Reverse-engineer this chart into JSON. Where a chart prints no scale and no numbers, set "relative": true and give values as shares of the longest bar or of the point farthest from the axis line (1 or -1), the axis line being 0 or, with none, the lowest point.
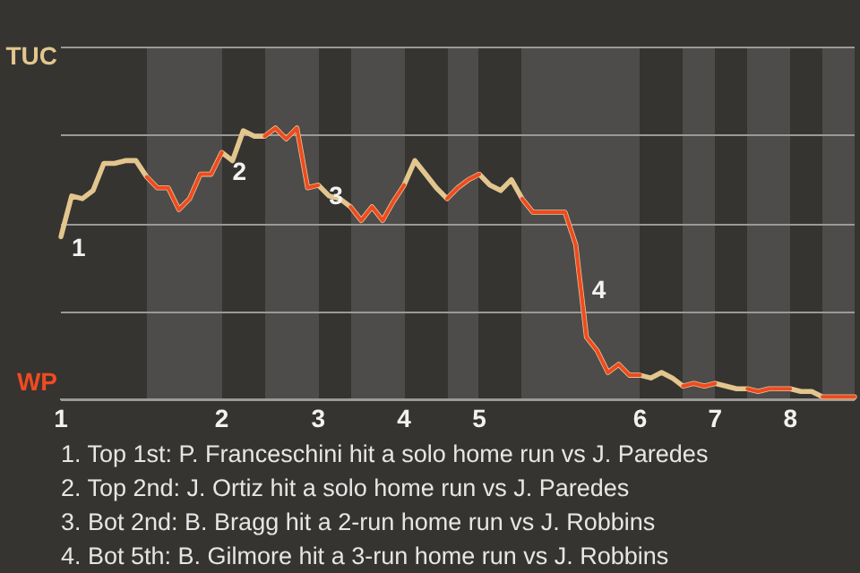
{
  "chart_data": {
    "type": "line",
    "relative": true,
    "categories": [
      "1",
      null,
      null,
      null,
      null,
      null,
      null,
      null,
      null,
      null,
      null,
      null,
      null,
      null,
      null,
      "2",
      null,
      null,
      null,
      null,
      null,
      null,
      null,
      null,
      "3",
      null,
      null,
      null,
      null,
      null,
      null,
      null,
      "4",
      null,
      null,
      null,
      null,
      null,
      null,
      "5",
      null,
      null,
      null,
      null,
      null,
      null,
      null,
      null,
      null,
      null,
      null,
      null,
      null,
      null,
      "6",
      null,
      null,
      null,
      null,
      null,
      null,
      "7",
      null,
      null,
      null,
      null,
      null,
      null,
      "8",
      null,
      null,
      null,
      null,
      null,
      null
    ],
    "series": [
      {
        "name": "TUC",
        "color": "#e2c68e",
        "values": [
          0.6,
          0.75,
          0.74,
          0.77,
          0.87,
          0.87,
          0.88,
          0.88,
          0.82,
          0.78,
          0.78,
          0.7,
          0.74,
          0.83,
          0.83,
          0.91,
          0.88,
          0.99,
          0.97,
          0.97,
          1.0,
          0.96,
          1.0,
          0.78,
          0.79,
          0.75,
          0.74,
          0.71,
          0.66,
          0.71,
          0.66,
          0.73,
          0.79,
          0.88,
          0.83,
          0.78,
          0.74,
          0.78,
          0.81,
          0.83,
          0.79,
          0.77,
          0.81,
          0.74,
          0.69,
          0.69,
          0.69,
          0.69,
          0.57,
          0.23,
          0.18,
          0.1,
          0.13,
          0.09,
          0.09,
          0.08,
          0.1,
          0.08,
          0.05,
          0.06,
          0.05,
          0.06,
          0.05,
          0.04,
          0.04,
          0.03,
          0.04,
          0.04,
          0.04,
          0.03,
          0.03,
          0.01,
          0.01,
          0.01,
          0.01
        ]
      },
      {
        "name": "WP",
        "color": "#f04a22",
        "values": [
          null,
          null,
          null,
          null,
          null,
          null,
          null,
          null,
          0.82,
          0.78,
          0.78,
          0.7,
          0.74,
          0.83,
          0.83,
          0.91,
          null,
          null,
          null,
          0.97,
          1.0,
          0.96,
          1.0,
          0.78,
          0.79,
          null,
          null,
          0.71,
          0.66,
          0.71,
          0.66,
          0.73,
          0.79,
          null,
          null,
          null,
          0.74,
          0.78,
          0.81,
          0.83,
          null,
          null,
          null,
          0.74,
          0.69,
          0.69,
          0.69,
          0.69,
          0.57,
          0.23,
          0.18,
          0.1,
          0.13,
          0.09,
          0.09,
          null,
          null,
          null,
          0.05,
          0.06,
          0.05,
          0.06,
          null,
          null,
          0.04,
          0.03,
          0.04,
          0.04,
          0.04,
          null,
          null,
          0.01,
          0.01,
          0.01,
          0.01
        ]
      }
    ],
    "grid": true,
    "marker": "none",
    "line_style": "solid",
    "annotations": [
      {
        "text": "1",
        "x": "1",
        "y": 0.6
      },
      {
        "text": "2",
        "x": "2",
        "y": 0.88
      },
      {
        "text": "3",
        "x": "3",
        "y": 0.79
      },
      "4",
      "1. Top 1st: P. Franceschini hit a solo home run vs J. Paredes",
      "2. Top 2nd: J. Ortiz hit a solo home run vs J. Paredes",
      "3. Bot 2nd: B. Bragg hit a 2-run home run vs J. Robbins",
      "4. Bot 5th: B. Gilmore hit a 3-run home run vs J. Robbins"
    ]
  }
}
